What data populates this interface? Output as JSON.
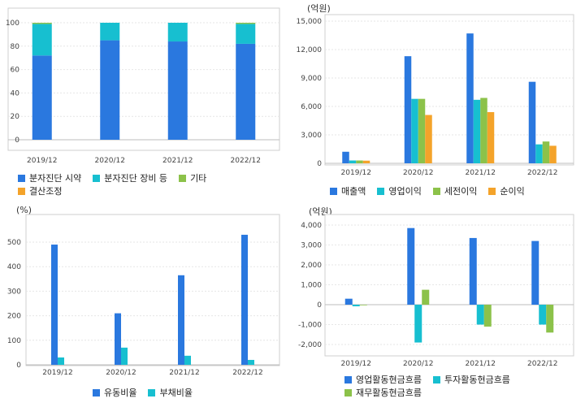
{
  "colors": {
    "blue": "#2a78df",
    "cyan": "#17bfd0",
    "green": "#8cc24a",
    "orange": "#f4a32a"
  },
  "chart_data": [
    {
      "type": "bar",
      "stacked": true,
      "title": "",
      "unit": "",
      "categories": [
        "2019/12",
        "2020/12",
        "2021/12",
        "2022/12"
      ],
      "yticks": [
        "0",
        "20",
        "40",
        "60",
        "80",
        "100"
      ],
      "ylim": [
        0,
        100
      ],
      "series": [
        {
          "name": "분자진단 시약",
          "color": "#2a78df",
          "values": [
            72,
            85,
            84,
            82
          ]
        },
        {
          "name": "분자진단 장비 등",
          "color": "#17bfd0",
          "values": [
            27,
            15,
            16,
            17
          ]
        },
        {
          "name": "기타",
          "color": "#8cc24a",
          "values": [
            1,
            0,
            0,
            1
          ]
        },
        {
          "name": "결산조정",
          "color": "#f4a32a",
          "values": [
            0,
            0,
            0,
            0
          ]
        }
      ],
      "legend_rows": [
        [
          "분자진단 시약",
          "분자진단 장비 등",
          "기타"
        ],
        [
          "결산조정"
        ]
      ]
    },
    {
      "type": "bar",
      "stacked": false,
      "title": "",
      "unit": "(억원)",
      "categories": [
        "2019/12",
        "2020/12",
        "2021/12",
        "2022/12"
      ],
      "yticks": [
        "0",
        "3,000",
        "6,000",
        "9,000",
        "12,000",
        "15,000"
      ],
      "ylim": [
        0,
        15000
      ],
      "series": [
        {
          "name": "매출액",
          "color": "#2a78df",
          "values": [
            1220,
            11300,
            13700,
            8600
          ]
        },
        {
          "name": "영업이익",
          "color": "#17bfd0",
          "values": [
            300,
            6800,
            6700,
            2000
          ]
        },
        {
          "name": "세전이익",
          "color": "#8cc24a",
          "values": [
            300,
            6800,
            6900,
            2300
          ]
        },
        {
          "name": "순이익",
          "color": "#f4a32a",
          "values": [
            280,
            5100,
            5400,
            1850
          ]
        }
      ],
      "legend_rows": [
        [
          "매출액",
          "영업이익",
          "세전이익",
          "순이익"
        ]
      ]
    },
    {
      "type": "bar",
      "stacked": false,
      "title": "",
      "unit": "(%)",
      "categories": [
        "2019/12",
        "2020/12",
        "2021/12",
        "2022/12"
      ],
      "yticks": [
        "0",
        "100",
        "200",
        "300",
        "400",
        "500"
      ],
      "ylim": [
        0,
        560
      ],
      "series": [
        {
          "name": "유동비율",
          "color": "#2a78df",
          "values": [
            490,
            210,
            365,
            530
          ]
        },
        {
          "name": "부채비율",
          "color": "#17bfd0",
          "values": [
            30,
            70,
            37,
            20
          ]
        }
      ],
      "legend_rows": [
        [
          "유동비율",
          "부채비율"
        ]
      ]
    },
    {
      "type": "bar",
      "stacked": false,
      "title": "",
      "unit": "(억원)",
      "categories": [
        "2019/12",
        "2020/12",
        "2021/12",
        "2022/12"
      ],
      "yticks": [
        "-2,000",
        "-1,000",
        "0",
        "1,000",
        "2,000",
        "3,000",
        "4,000"
      ],
      "ylim": [
        -2400,
        4200
      ],
      "series": [
        {
          "name": "영업활동현금흐름",
          "color": "#2a78df",
          "values": [
            300,
            3850,
            3350,
            3200
          ]
        },
        {
          "name": "투자활동현금흐름",
          "color": "#17bfd0",
          "values": [
            -80,
            -1900,
            -1000,
            -1000
          ]
        },
        {
          "name": "재무활동현금흐름",
          "color": "#8cc24a",
          "values": [
            -30,
            750,
            -1100,
            -1400
          ]
        }
      ],
      "legend_rows": [
        [
          "영업활동현금흐름",
          "투자활동현금흐름"
        ],
        [
          "재무활동현금흐름"
        ]
      ]
    }
  ]
}
